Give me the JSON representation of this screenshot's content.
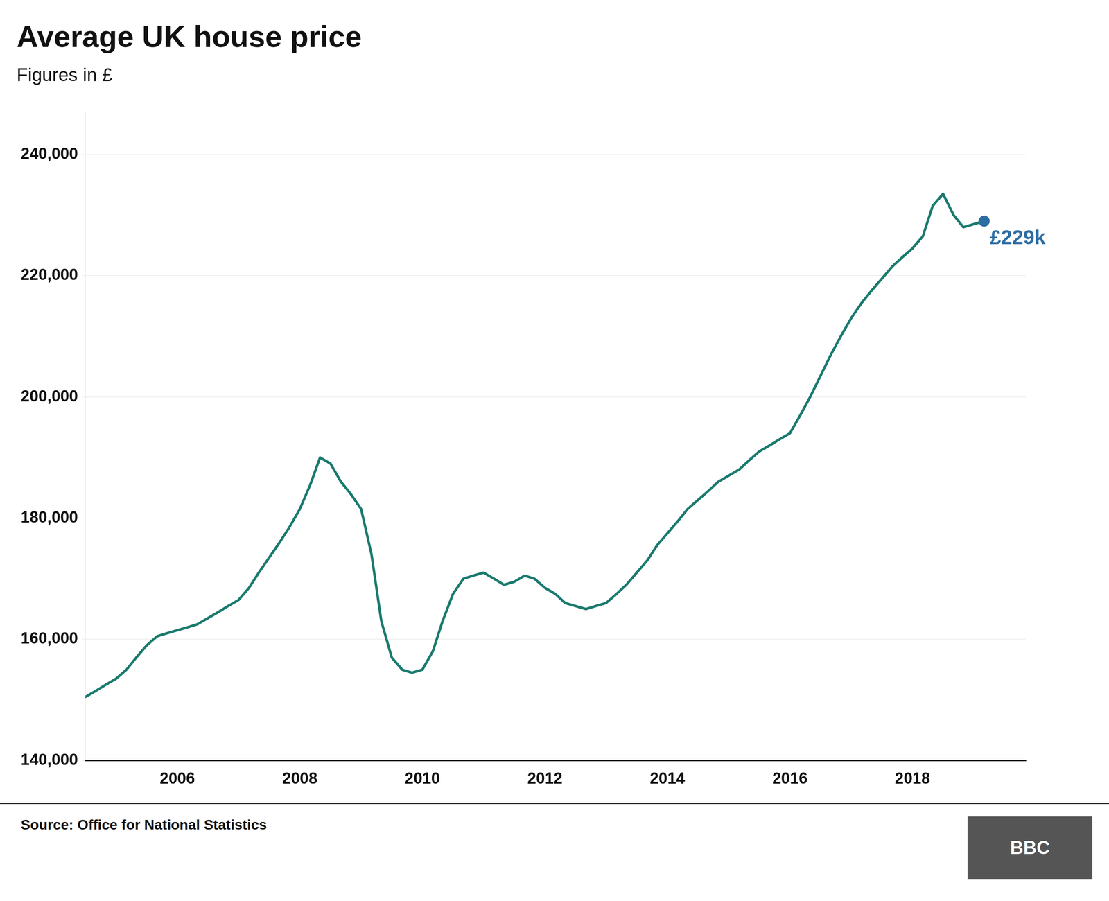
{
  "chart_data": {
    "type": "line",
    "title": "Average UK house price",
    "subtitle": "Figures in £",
    "source": "Source: Office for National Statistics",
    "logo": "BBC",
    "color": "#1a7a6e",
    "x": [
      2004.5,
      2004.67,
      2004.83,
      2005.0,
      2005.17,
      2005.33,
      2005.5,
      2005.67,
      2005.83,
      2006.0,
      2006.17,
      2006.33,
      2006.5,
      2006.67,
      2006.83,
      2007.0,
      2007.17,
      2007.33,
      2007.5,
      2007.67,
      2007.83,
      2008.0,
      2008.17,
      2008.33,
      2008.5,
      2008.67,
      2008.83,
      2009.0,
      2009.17,
      2009.33,
      2009.5,
      2009.67,
      2009.83,
      2010.0,
      2010.17,
      2010.33,
      2010.5,
      2010.67,
      2010.83,
      2011.0,
      2011.17,
      2011.33,
      2011.5,
      2011.67,
      2011.83,
      2012.0,
      2012.17,
      2012.33,
      2012.5,
      2012.67,
      2012.83,
      2013.0,
      2013.17,
      2013.33,
      2013.5,
      2013.67,
      2013.83,
      2014.0,
      2014.17,
      2014.33,
      2014.5,
      2014.67,
      2014.83,
      2015.0,
      2015.17,
      2015.33,
      2015.5,
      2015.67,
      2015.83,
      2016.0,
      2016.17,
      2016.33,
      2016.5,
      2016.67,
      2016.83,
      2017.0,
      2017.17,
      2017.33,
      2017.5,
      2017.67,
      2017.83,
      2018.0,
      2018.17,
      2018.33,
      2018.5,
      2018.67,
      2018.83,
      2019.0,
      2019.17
    ],
    "values": [
      150500,
      151500,
      152500,
      153500,
      155000,
      157000,
      159000,
      160500,
      161000,
      161500,
      162000,
      162500,
      163500,
      164500,
      165500,
      166500,
      168500,
      171000,
      173500,
      176000,
      178500,
      181500,
      185500,
      190000,
      189000,
      186000,
      184000,
      181500,
      174000,
      163000,
      157000,
      155000,
      154500,
      155000,
      158000,
      163000,
      167500,
      170000,
      170500,
      171000,
      170000,
      169000,
      169500,
      170500,
      170000,
      168500,
      167500,
      166000,
      165500,
      165000,
      165500,
      166000,
      167500,
      169000,
      171000,
      173000,
      175500,
      177500,
      179500,
      181500,
      183000,
      184500,
      186000,
      187000,
      188000,
      189500,
      191000,
      192000,
      193000,
      194000,
      197000,
      200000,
      203500,
      207000,
      210000,
      213000,
      215500,
      217500,
      219500,
      221500,
      223000,
      224500,
      226500,
      231500,
      233500,
      230000,
      228000,
      228500,
      229000
    ],
    "xlim": [
      2004.5,
      2019.85
    ],
    "xticks": [
      2006,
      2008,
      2010,
      2012,
      2014,
      2016,
      2018
    ],
    "ylim": [
      140000,
      247000
    ],
    "yticks": [
      {
        "value": 140000,
        "label": "140,000"
      },
      {
        "value": 160000,
        "label": "160,000"
      },
      {
        "value": 180000,
        "label": "180,000"
      },
      {
        "value": 200000,
        "label": "200,000"
      },
      {
        "value": 220000,
        "label": "220,000"
      },
      {
        "value": 240000,
        "label": "240,000"
      }
    ],
    "grid": "y",
    "annotations": [
      {
        "text": "£229k",
        "x": 2019.17,
        "y": 229000,
        "color": "#2e6da4"
      }
    ]
  }
}
